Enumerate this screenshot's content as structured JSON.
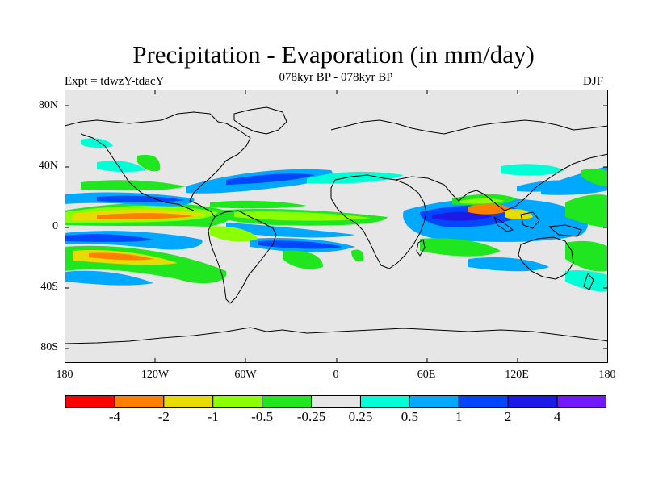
{
  "title": "Precipitation - Evaporation (in mm/day)",
  "subtitle": "078kyr BP - 078kyr BP",
  "experiment": "Expt = tdwzY-tdacY",
  "season": "DJF",
  "map": {
    "projection": "cylindrical-equidistant",
    "background_color": "#e6e6e6",
    "lat_range": [
      -90,
      90
    ],
    "lon_range": [
      -180,
      180
    ],
    "y_ticks": [
      "80N",
      "40N",
      "0",
      "40S",
      "80S"
    ],
    "x_ticks": [
      "180",
      "120W",
      "60W",
      "0",
      "60E",
      "120E",
      "180"
    ]
  },
  "colorbar": {
    "colors": [
      "#ff0000",
      "#ff7f00",
      "#e6dc00",
      "#8cff00",
      "#1fe61f",
      "#e6e6e6",
      "#00ffd5",
      "#00a8ff",
      "#0046ff",
      "#1e19e6",
      "#7319ff"
    ],
    "labels": [
      "-4",
      "-2",
      "-1",
      "-0.5",
      "-0.25",
      "0.25",
      "0.5",
      "1",
      "2",
      "4"
    ]
  }
}
